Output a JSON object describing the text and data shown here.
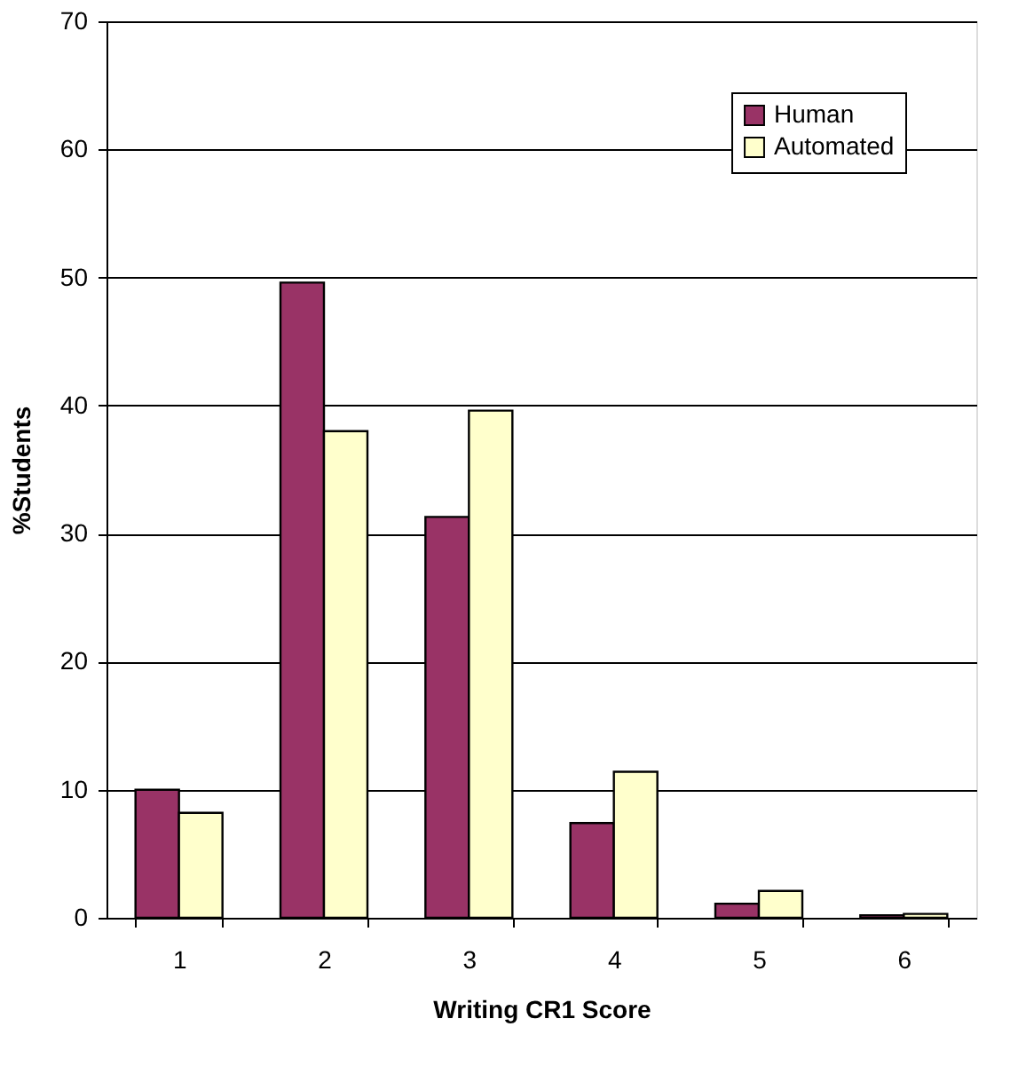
{
  "chart_data": {
    "type": "bar",
    "xlabel": "Writing CR1 Score",
    "ylabel": "%Students",
    "categories": [
      "1",
      "2",
      "3",
      "4",
      "5",
      "6"
    ],
    "series": [
      {
        "name": "Human",
        "color": "#993366",
        "values": [
          10.0,
          49.6,
          31.3,
          7.4,
          1.1,
          0.2
        ]
      },
      {
        "name": "Automated",
        "color": "#ffffcc",
        "values": [
          8.2,
          38.0,
          39.6,
          11.4,
          2.1,
          0.3
        ]
      }
    ],
    "ylim": [
      0,
      70
    ],
    "yticks": [
      0,
      10,
      20,
      30,
      40,
      50,
      60,
      70
    ],
    "grid": "y",
    "legend": "top right"
  }
}
